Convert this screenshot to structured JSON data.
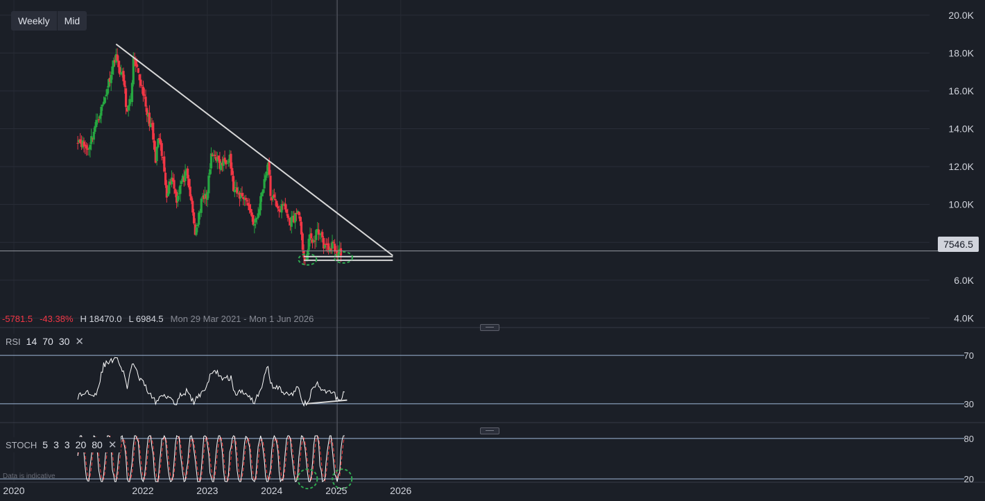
{
  "toolbar": {
    "timeframe": "Weekly",
    "price_type": "Mid"
  },
  "stats": {
    "change": "-5781.5",
    "change_pct": "-43.38%",
    "high": "H 18470.0",
    "low": "L 6984.5",
    "range": "Mon 29 Mar 2021 - Mon 1 Jun 2026"
  },
  "last_price": "7546.5",
  "rsi_label": {
    "name": "RSI",
    "params": [
      "14",
      "70",
      "30"
    ]
  },
  "stoch_label": {
    "name": "STOCH",
    "params": [
      "5",
      "3",
      "3",
      "20",
      "80"
    ]
  },
  "disclaimer": "Data is indicative",
  "colors": {
    "up": "#26a641",
    "down": "#f23645",
    "line": "#ffffff",
    "signal": "#ff4040",
    "band": "#9fb9d8",
    "trend": "#d8d8d8",
    "circle": "#2fa84f"
  },
  "chart_data": [
    {
      "type": "candlestick",
      "interval": "weekly",
      "x_axis_labels": [
        "2020",
        "2022",
        "2023",
        "2024",
        "2025",
        "2026"
      ],
      "y_axis_labels": [
        "4.0K",
        "6.0K",
        "8.0K",
        "10.0K",
        "12.0K",
        "14.0K",
        "16.0K",
        "18.0K",
        "20.0K"
      ],
      "ylim": [
        3500,
        20800
      ],
      "anchors": [
        [
          "2020-12-28",
          13500
        ],
        [
          "2021-02-22",
          12900
        ],
        [
          "2021-04-12",
          14300
        ],
        [
          "2021-05-24",
          15400
        ],
        [
          "2021-07-05",
          17000
        ],
        [
          "2021-08-02",
          18000
        ],
        [
          "2021-08-09",
          17400
        ],
        [
          "2021-09-13",
          16600
        ],
        [
          "2021-10-04",
          14800
        ],
        [
          "2021-10-25",
          15600
        ],
        [
          "2021-11-08",
          17600
        ],
        [
          "2021-12-06",
          16800
        ],
        [
          "2022-01-03",
          16000
        ],
        [
          "2022-01-17",
          15000
        ],
        [
          "2022-02-21",
          14000
        ],
        [
          "2022-03-14",
          12200
        ],
        [
          "2022-03-28",
          13500
        ],
        [
          "2022-04-25",
          12300
        ],
        [
          "2022-05-16",
          10600
        ],
        [
          "2022-06-13",
          11500
        ],
        [
          "2022-07-11",
          10300
        ],
        [
          "2022-08-08",
          11200
        ],
        [
          "2022-09-05",
          11600
        ],
        [
          "2022-09-26",
          10500
        ],
        [
          "2022-10-24",
          8500
        ],
        [
          "2022-11-21",
          9600
        ],
        [
          "2022-12-05",
          10600
        ],
        [
          "2022-12-26",
          10200
        ],
        [
          "2023-01-23",
          12500
        ],
        [
          "2023-02-13",
          12700
        ],
        [
          "2023-03-13",
          12000
        ],
        [
          "2023-04-10",
          12300
        ],
        [
          "2023-05-08",
          12600
        ],
        [
          "2023-05-29",
          10800
        ],
        [
          "2023-06-26",
          10500
        ],
        [
          "2023-07-31",
          10400
        ],
        [
          "2023-08-28",
          9800
        ],
        [
          "2023-09-25",
          8900
        ],
        [
          "2023-10-16",
          9500
        ],
        [
          "2023-11-06",
          10700
        ],
        [
          "2023-12-11",
          12200
        ],
        [
          "2023-12-25",
          10500
        ],
        [
          "2024-01-22",
          10100
        ],
        [
          "2024-02-19",
          9700
        ],
        [
          "2024-03-11",
          10000
        ],
        [
          "2024-04-08",
          9100
        ],
        [
          "2024-05-06",
          9300
        ],
        [
          "2024-06-03",
          9700
        ],
        [
          "2024-06-24",
          7400
        ],
        [
          "2024-07-15",
          7200
        ],
        [
          "2024-08-05",
          8300
        ],
        [
          "2024-09-02",
          8000
        ],
        [
          "2024-09-16",
          8800
        ],
        [
          "2024-10-21",
          7900
        ],
        [
          "2024-11-18",
          7600
        ],
        [
          "2024-12-16",
          7900
        ],
        [
          "2025-01-06",
          7300
        ],
        [
          "2025-01-27",
          7550
        ]
      ],
      "trendline": [
        [
          "2021-08-02",
          18470
        ],
        [
          "2025-11-17",
          7300
        ]
      ],
      "support_lines": [
        [
          [
            "2024-07-01",
            7250
          ],
          [
            "2025-11-17",
            7250
          ]
        ],
        [
          [
            "2024-07-01",
            7050
          ],
          [
            "2025-11-17",
            7050
          ]
        ]
      ],
      "current_price_line": 7546.5,
      "cursor_date": "2025-01-06",
      "circled_points": [
        [
          "2024-07-22",
          7100
        ],
        [
          "2025-02-10",
          7200
        ]
      ]
    },
    {
      "type": "line",
      "name": "RSI",
      "levels": [
        70,
        30
      ],
      "y_axis_labels": [
        "70",
        "30"
      ],
      "ylim": [
        15,
        85
      ],
      "anchors": [
        [
          "2020-12-28",
          36
        ],
        [
          "2021-02-22",
          40
        ],
        [
          "2021-04-12",
          38
        ],
        [
          "2021-05-24",
          62
        ],
        [
          "2021-07-05",
          65
        ],
        [
          "2021-08-02",
          70
        ],
        [
          "2021-09-13",
          55
        ],
        [
          "2021-10-04",
          44
        ],
        [
          "2021-11-08",
          65
        ],
        [
          "2021-12-06",
          52
        ],
        [
          "2022-01-17",
          44
        ],
        [
          "2022-03-14",
          31
        ],
        [
          "2022-04-25",
          38
        ],
        [
          "2022-06-13",
          35
        ],
        [
          "2022-07-04",
          30
        ],
        [
          "2022-08-08",
          38
        ],
        [
          "2022-09-05",
          40
        ],
        [
          "2022-10-17",
          31
        ],
        [
          "2022-11-21",
          38
        ],
        [
          "2022-12-26",
          44
        ],
        [
          "2023-01-23",
          55
        ],
        [
          "2023-02-20",
          57
        ],
        [
          "2023-04-03",
          50
        ],
        [
          "2023-05-15",
          52
        ],
        [
          "2023-06-05",
          38
        ],
        [
          "2023-07-17",
          40
        ],
        [
          "2023-08-21",
          38
        ],
        [
          "2023-09-25",
          31
        ],
        [
          "2023-11-06",
          45
        ],
        [
          "2023-12-11",
          62
        ],
        [
          "2023-12-25",
          46
        ],
        [
          "2024-02-19",
          42
        ],
        [
          "2024-04-08",
          36
        ],
        [
          "2024-06-03",
          44
        ],
        [
          "2024-06-24",
          31
        ],
        [
          "2024-07-22",
          30
        ],
        [
          "2024-08-19",
          42
        ],
        [
          "2024-09-16",
          46
        ],
        [
          "2024-10-21",
          39
        ],
        [
          "2024-11-25",
          40
        ],
        [
          "2024-12-23",
          37
        ],
        [
          "2025-01-20",
          32
        ],
        [
          "2025-02-17",
          41
        ]
      ],
      "trendline": [
        [
          "2024-07-15",
          30
        ],
        [
          "2025-03-03",
          33
        ]
      ],
      "cursor_date": "2025-01-06"
    },
    {
      "type": "line",
      "name": "STOCH",
      "levels": [
        80,
        20
      ],
      "y_axis_labels": [
        "80",
        "20"
      ],
      "ylim": [
        15,
        85
      ],
      "circled_points": [
        [
          "2024-07-22",
          20
        ],
        [
          "2025-02-03",
          20
        ]
      ],
      "cursor_date": "2025-01-06"
    }
  ]
}
